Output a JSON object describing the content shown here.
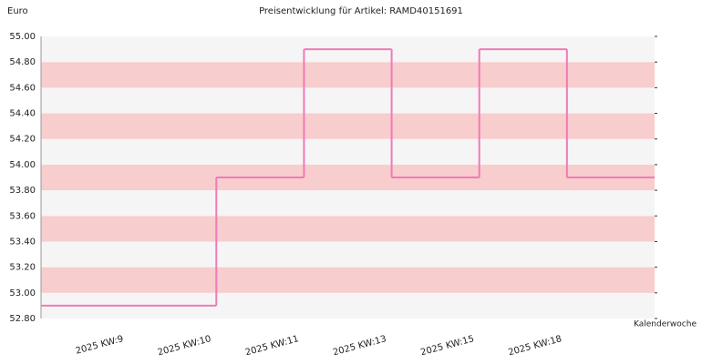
{
  "chart_data": {
    "type": "step",
    "title": "Preisentwicklung für Artikel: RAMD40151691",
    "y_label": "Euro",
    "x_label": "Kalenderwoche",
    "categories": [
      "2025 KW:9",
      "2025 KW:10",
      "2025 KW:11",
      "2025 KW:13",
      "2025 KW:15",
      "2025 KW:18"
    ],
    "values": [
      52.9,
      53.9,
      54.9,
      53.9,
      54.9,
      53.9
    ],
    "color": "#f07ab8",
    "band_colors": [
      "#f5f5f5",
      "#f8cdcd"
    ],
    "ylim": [
      52.8,
      55.0
    ],
    "yticks": [
      {
        "value": 52.8,
        "label": "52.80"
      },
      {
        "value": 53.0,
        "label": "53.00"
      },
      {
        "value": 53.2,
        "label": "53.20"
      },
      {
        "value": 53.4,
        "label": "53.40"
      },
      {
        "value": 53.6,
        "label": "53.60"
      },
      {
        "value": 53.8,
        "label": "53.80"
      },
      {
        "value": 54.0,
        "label": "54.00"
      },
      {
        "value": 54.2,
        "label": "54.20"
      },
      {
        "value": 54.4,
        "label": "54.40"
      },
      {
        "value": 54.6,
        "label": "54.60"
      },
      {
        "value": 54.8,
        "label": "54.80"
      },
      {
        "value": 55.0,
        "label": "55.00"
      }
    ]
  }
}
